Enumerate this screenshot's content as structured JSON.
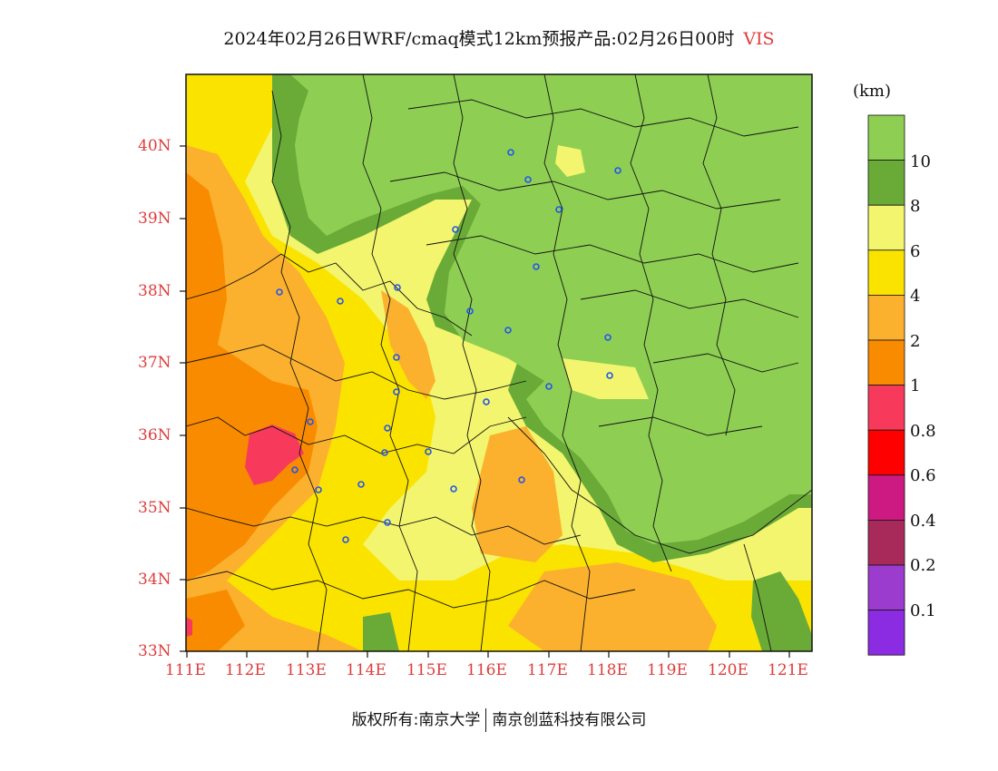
{
  "title": {
    "main": "2024年02月26日WRF/cmaq模式12km预报产品:02月26日00时",
    "variable": "VIS"
  },
  "map": {
    "lat_labels": [
      "40N",
      "39N",
      "38N",
      "37N",
      "36N",
      "35N",
      "34N",
      "33N"
    ],
    "lon_labels": [
      "111E",
      "112E",
      "113E",
      "114E",
      "115E",
      "116E",
      "117E",
      "118E",
      "119E",
      "120E",
      "121E"
    ]
  },
  "colorbar": {
    "unit": "(km)",
    "labels": [
      "10",
      "8",
      "6",
      "4",
      "2",
      "1",
      "0.8",
      "0.6",
      "0.4",
      "0.2",
      "0.1"
    ],
    "colors": [
      "#8ecf53",
      "#6aab38",
      "#f2f56d",
      "#fbe300",
      "#fbb12e",
      "#f98b00",
      "#f73a5c",
      "#ff0000",
      "#cc1a82",
      "#a72a5a",
      "#9b3ccf",
      "#8b2be2"
    ]
  },
  "footer": {
    "left": "版权所有:南京大学",
    "right": "南京创蓝科技有限公司"
  }
}
